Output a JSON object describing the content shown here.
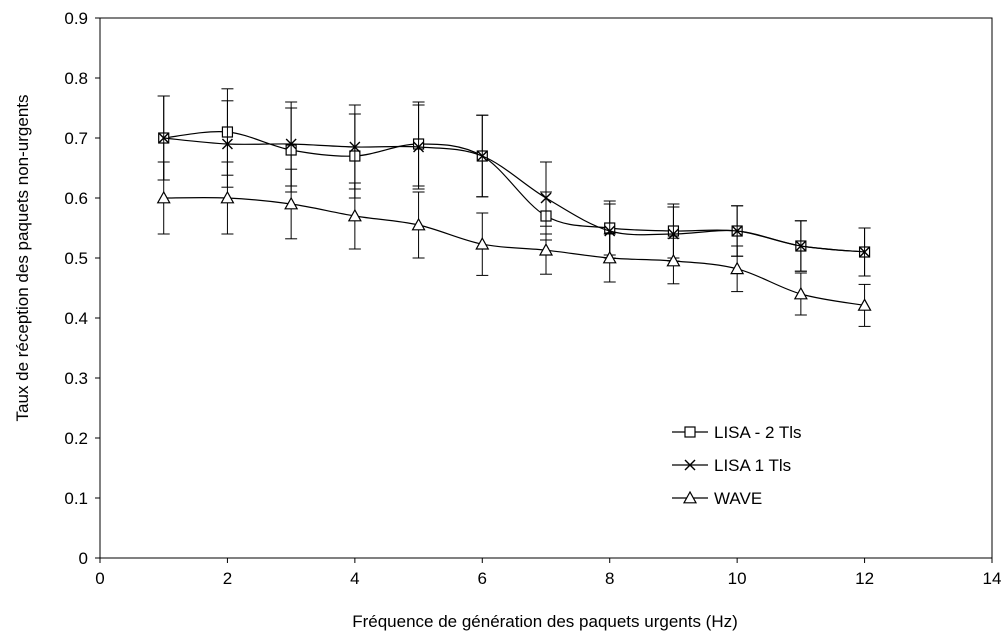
{
  "chart_data": {
    "type": "line",
    "title": "",
    "xlabel": "Fréquence de génération des paquets urgents (Hz)",
    "ylabel": "Taux de réception des paquets non-urgents",
    "xlim": [
      0,
      14
    ],
    "ylim": [
      0,
      0.9
    ],
    "xticks": [
      "0",
      "2",
      "4",
      "6",
      "8",
      "10",
      "12",
      "14"
    ],
    "yticks": [
      "0",
      "0.1",
      "0.2",
      "0.3",
      "0.4",
      "0.5",
      "0.6",
      "0.7",
      "0.8",
      "0.9"
    ],
    "grid": false,
    "legend_position": "bottom-right",
    "x": [
      1,
      2,
      3,
      4,
      5,
      6,
      7,
      8,
      9,
      10,
      11,
      12
    ],
    "series": [
      {
        "name": "LISA - 2 Tls",
        "marker": "square",
        "values": [
          0.7,
          0.71,
          0.68,
          0.67,
          0.69,
          0.67,
          0.57,
          0.55,
          0.545,
          0.545,
          0.52,
          0.51
        ],
        "errors": [
          0.07,
          0.072,
          0.07,
          0.07,
          0.07,
          0.068,
          0.04,
          0.045,
          0.045,
          0.042,
          0.042,
          0.04
        ]
      },
      {
        "name": "LISA 1 Tls",
        "marker": "x",
        "values": [
          0.7,
          0.69,
          0.69,
          0.685,
          0.685,
          0.67,
          0.6,
          0.545,
          0.54,
          0.545,
          0.52,
          0.51
        ],
        "errors": [
          0.07,
          0.072,
          0.07,
          0.07,
          0.07,
          0.068,
          0.06,
          0.045,
          0.045,
          0.042,
          0.042,
          0.04
        ]
      },
      {
        "name": "WAVE",
        "marker": "triangle",
        "values": [
          0.6,
          0.6,
          0.59,
          0.57,
          0.555,
          0.523,
          0.513,
          0.5,
          0.495,
          0.482,
          0.44,
          0.421
        ],
        "errors": [
          0.06,
          0.06,
          0.058,
          0.055,
          0.055,
          0.052,
          0.04,
          0.04,
          0.038,
          0.038,
          0.035,
          0.035
        ]
      }
    ]
  }
}
